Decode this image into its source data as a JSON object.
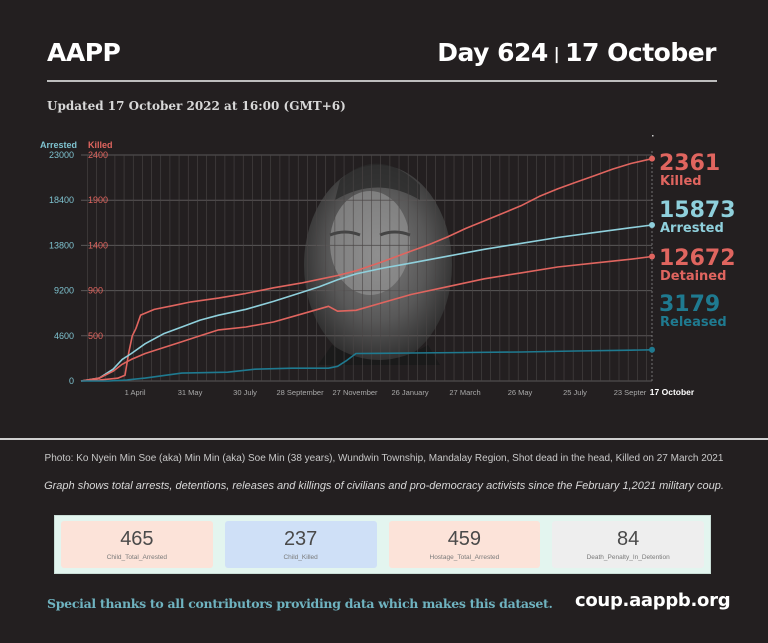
{
  "header": {
    "org": "AAPP",
    "day": "Day 624",
    "separator": "|",
    "date": "17 October",
    "updated": "Updated 17 October 2022 at 16:00 (GMT+6)"
  },
  "photo": {
    "caption": "Photo: Ko Nyein Min Soe (aka) Min Min (aka) Soe Min (38 years), Wundwin Township, Mandalay Region, Shot dead in the head, Killed on 27 March 2021"
  },
  "note": "Graph shows total arrests, detentions, releases and killings of civilians and pro-democracy activists since the February 1,2021 military coup.",
  "cards": [
    {
      "value": "465",
      "label": "Child_Total_Arrested",
      "color": "#fce3d9"
    },
    {
      "value": "237",
      "label": "Child_Killed",
      "color": "#cfe0f7"
    },
    {
      "value": "459",
      "label": "Hostage_Total_Arrested",
      "color": "#fce3d9"
    },
    {
      "value": "84",
      "label": "Death_Penalty_In_Detention",
      "color": "#eeeeee"
    }
  ],
  "footer": {
    "thanks": "Special thanks to all contributors providing data which makes this dataset.",
    "url": "coup.aappb.org"
  },
  "chart_data": {
    "type": "line",
    "title": "",
    "xlabel": "",
    "x_unit": "days since 1 February 2021",
    "xlim": [
      0,
      623
    ],
    "x_ticks": [
      {
        "day": 59,
        "label": "1 April"
      },
      {
        "day": 119,
        "label": "31 May"
      },
      {
        "day": 179,
        "label": "30 July"
      },
      {
        "day": 239,
        "label": "28 September"
      },
      {
        "day": 299,
        "label": "27 November"
      },
      {
        "day": 359,
        "label": "26 January"
      },
      {
        "day": 419,
        "label": "27 March"
      },
      {
        "day": 479,
        "label": "26 May"
      },
      {
        "day": 539,
        "label": "25 July"
      },
      {
        "day": 599,
        "label": "23 Septer"
      },
      {
        "day": 623,
        "label": "17 October",
        "bold": true
      }
    ],
    "y_axes": [
      {
        "name": "Arrested",
        "color": "#7fc3d0",
        "ylim": [
          0,
          23000
        ],
        "ticks": [
          "0",
          "4600",
          "9200",
          "13800",
          "18400",
          "23000"
        ]
      },
      {
        "name": "Killed",
        "color": "#e0655f",
        "ylim": [
          0,
          2400
        ],
        "ticks": [
          "500",
          "900",
          "1400",
          "1900",
          "2400"
        ]
      }
    ],
    "grid": true,
    "series": [
      {
        "name": "Killed",
        "axis": "Killed",
        "color": "#e0655f",
        "end_value": "2361",
        "end_label": "Killed",
        "x": [
          0,
          20,
          40,
          48,
          52,
          56,
          60,
          65,
          80,
          100,
          120,
          150,
          180,
          210,
          240,
          260,
          280,
          300,
          330,
          360,
          380,
          400,
          420,
          440,
          460,
          480,
          500,
          520,
          540,
          560,
          580,
          600,
          623
        ],
        "values": [
          0,
          10,
          30,
          60,
          300,
          480,
          560,
          700,
          760,
          800,
          840,
          880,
          930,
          990,
          1040,
          1080,
          1120,
          1170,
          1270,
          1380,
          1450,
          1530,
          1620,
          1700,
          1780,
          1860,
          1960,
          2040,
          2110,
          2180,
          2250,
          2310,
          2361
        ]
      },
      {
        "name": "Arrested",
        "axis": "Arrested",
        "color": "#8fd0dc",
        "end_value": "15873",
        "end_label": "Arrested",
        "x": [
          0,
          20,
          35,
          45,
          55,
          70,
          90,
          110,
          130,
          150,
          180,
          210,
          240,
          260,
          280,
          300,
          330,
          360,
          400,
          440,
          480,
          520,
          560,
          600,
          623
        ],
        "values": [
          0,
          300,
          1200,
          2200,
          2800,
          3800,
          4800,
          5500,
          6200,
          6700,
          7300,
          8100,
          9000,
          9600,
          10300,
          10900,
          11500,
          12000,
          12700,
          13400,
          14000,
          14600,
          15100,
          15600,
          15873
        ]
      },
      {
        "name": "Detained",
        "axis": "Arrested",
        "color": "#e0655f",
        "end_value": "12672",
        "end_label": "Detained",
        "x": [
          0,
          20,
          35,
          45,
          55,
          70,
          90,
          110,
          130,
          150,
          180,
          210,
          240,
          270,
          280,
          300,
          330,
          360,
          400,
          440,
          480,
          520,
          560,
          600,
          623
        ],
        "values": [
          0,
          300,
          1000,
          1700,
          2200,
          2800,
          3400,
          4000,
          4600,
          5200,
          5500,
          6000,
          6800,
          7600,
          7100,
          7200,
          8000,
          8800,
          9600,
          10400,
          11000,
          11600,
          12000,
          12400,
          12672
        ]
      },
      {
        "name": "Released",
        "axis": "Arrested",
        "color": "#1f7a90",
        "end_value": "3179",
        "end_label": "Released",
        "x": [
          0,
          30,
          50,
          70,
          90,
          110,
          160,
          190,
          230,
          270,
          280,
          290,
          300,
          360,
          420,
          480,
          540,
          600,
          623
        ],
        "values": [
          0,
          0,
          100,
          300,
          550,
          800,
          900,
          1200,
          1300,
          1300,
          1500,
          2100,
          2800,
          2850,
          2900,
          2950,
          3050,
          3130,
          3179
        ]
      }
    ]
  }
}
